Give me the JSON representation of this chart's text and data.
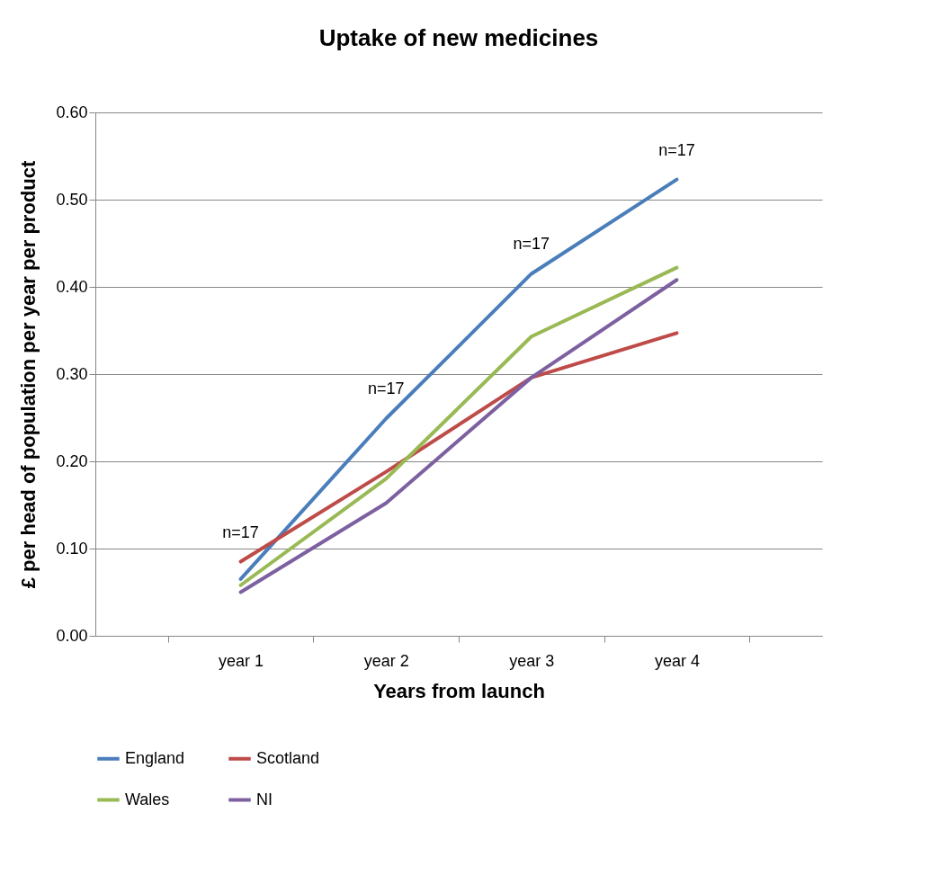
{
  "chart_data": {
    "type": "line",
    "title": "Uptake of new medicines",
    "xlabel": "Years from launch",
    "ylabel": "£ per head of population per year per product",
    "categories": [
      "year 1",
      "year 2",
      "year 3",
      "year 4"
    ],
    "series": [
      {
        "name": "England",
        "color": "#4a7ebb",
        "values": [
          0.065,
          0.249,
          0.415,
          0.523
        ]
      },
      {
        "name": "Scotland",
        "color": "#be4b48",
        "values": [
          0.085,
          0.188,
          0.296,
          0.347
        ]
      },
      {
        "name": "Wales",
        "color": "#98b954",
        "values": [
          0.058,
          0.18,
          0.343,
          0.422
        ]
      },
      {
        "name": "NI",
        "color": "#7d60a0",
        "values": [
          0.05,
          0.152,
          0.296,
          0.408
        ]
      }
    ],
    "ylim": [
      0,
      0.6
    ],
    "yticks": [
      {
        "value": 0,
        "label": "0.00"
      },
      {
        "value": 0.1,
        "label": "0.10"
      },
      {
        "value": 0.2,
        "label": "0.20"
      },
      {
        "value": 0.3,
        "label": "0.30"
      },
      {
        "value": 0.4,
        "label": "0.40"
      },
      {
        "value": 0.5,
        "label": "0.50"
      },
      {
        "value": 0.6,
        "label": "0.60"
      }
    ],
    "grid": "y",
    "legend": "bottom",
    "marker": "none",
    "line_style": "solid",
    "annotations": [
      "n=17",
      "n=17",
      "n=17",
      "n=17"
    ]
  }
}
